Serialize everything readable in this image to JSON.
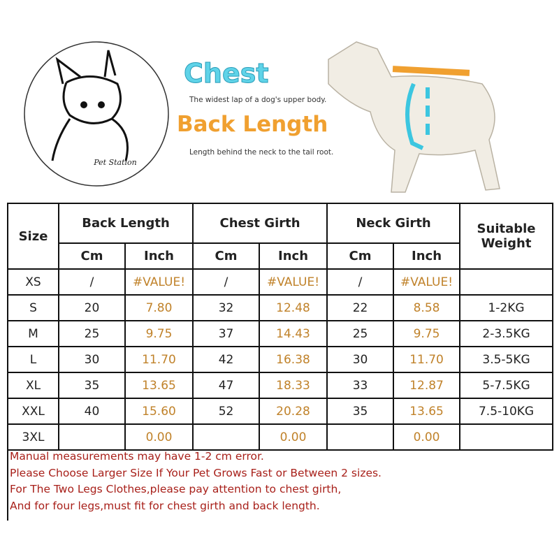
{
  "logo": {
    "text": "Pet Station"
  },
  "guide": {
    "chest_title": "Chest",
    "chest_text": "The widest lap of a dog's upper body.",
    "back_title": "Back Length",
    "back_text": "Length behind the neck to the tail root."
  },
  "table": {
    "header": {
      "size": "Size",
      "back": "Back Length",
      "chest": "Chest Girth",
      "neck": "Neck Girth",
      "weight": "Suitable Weight",
      "units": [
        "Cm",
        "Inch",
        "Cm",
        "Inch",
        "Cm",
        "Inch"
      ]
    },
    "rows": [
      [
        "XS",
        "/",
        "#VALUE!",
        "/",
        "#VALUE!",
        "/",
        "#VALUE!",
        null
      ],
      [
        "S",
        "20",
        "7.80",
        "32",
        "12.48",
        "22",
        "8.58",
        "1-2KG"
      ],
      [
        "M",
        "25",
        "9.75",
        "37",
        "14.43",
        "25",
        "9.75",
        "2-3.5KG"
      ],
      [
        "L",
        "30",
        "11.70",
        "42",
        "16.38",
        "30",
        "11.70",
        "3.5-5KG"
      ],
      [
        "XL",
        "35",
        "13.65",
        "47",
        "18.33",
        "33",
        "12.87",
        "5-7.5KG"
      ],
      [
        "XXL",
        "40",
        "15.60",
        "52",
        "20.28",
        "35",
        "13.65",
        "7.5-10KG"
      ],
      [
        "3XL",
        null,
        "0.00",
        null,
        "0.00",
        null,
        "0.00",
        null
      ]
    ]
  },
  "notes": [
    "Manual measurements may have 1-2 cm error.",
    "Please Choose Larger Size If Your Pet Grows Fast or Between 2 sizes.",
    "For The Two Legs Clothes,please pay attention to chest girth,",
    "And for four legs,must fit for chest girth and back length."
  ]
}
